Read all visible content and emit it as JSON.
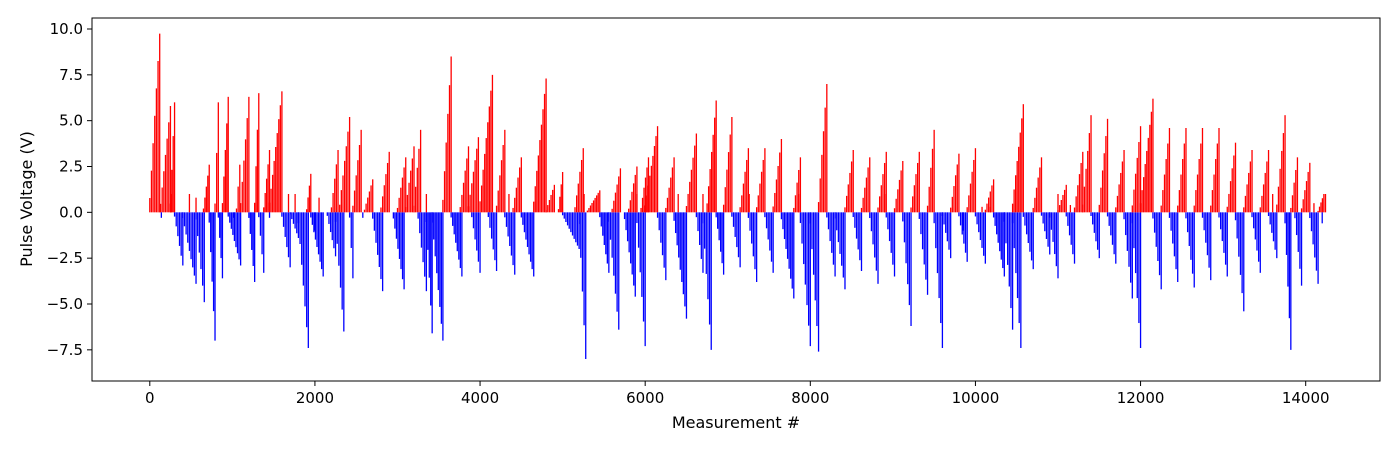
{
  "chart_data": {
    "type": "bar",
    "title": "",
    "xlabel": "Measurement #",
    "ylabel": "Pulse Voltage (V)",
    "xlim": [
      -700,
      14900
    ],
    "ylim": [
      -9.2,
      10.6
    ],
    "xticks": [
      0,
      2000,
      4000,
      6000,
      8000,
      10000,
      12000,
      14000
    ],
    "yticks": [
      -7.5,
      -5.0,
      -2.5,
      0.0,
      2.5,
      5.0,
      7.5,
      10.0
    ],
    "xtick_labels": [
      "0",
      "2000",
      "4000",
      "6000",
      "8000",
      "10000",
      "12000",
      "14000"
    ],
    "ytick_labels": [
      "−7.5",
      "−5.0",
      "−2.5",
      "0.0",
      "2.5",
      "5.0",
      "7.5",
      "10.0"
    ],
    "grid": false,
    "colors": {
      "positive": "#ff0000",
      "negative": "#0000ff"
    },
    "x_step": 20,
    "series_note_unused": null,
    "ramps": [
      {
        "start": 0,
        "end": 120,
        "peak": 9.75
      },
      {
        "start": 130,
        "end": 250,
        "peak": 5.8
      },
      {
        "start": 250,
        "end": 300,
        "peak": 6.0
      },
      {
        "start": 300,
        "end": 400,
        "peak": -2.9
      },
      {
        "start": 400,
        "end": 560,
        "peak": -3.9
      },
      {
        "start": 560,
        "end": 660,
        "peak": -4.9
      },
      {
        "start": 650,
        "end": 720,
        "peak": 2.6
      },
      {
        "start": 720,
        "end": 790,
        "peak": -7.0
      },
      {
        "start": 790,
        "end": 830,
        "peak": 6.0
      },
      {
        "start": 830,
        "end": 880,
        "peak": -3.6
      },
      {
        "start": 880,
        "end": 950,
        "peak": 6.3
      },
      {
        "start": 950,
        "end": 1100,
        "peak": -2.9
      },
      {
        "start": 1050,
        "end": 1090,
        "peak": 2.6
      },
      {
        "start": 1100,
        "end": 1200,
        "peak": 6.3
      },
      {
        "start": 1200,
        "end": 1270,
        "peak": -3.8
      },
      {
        "start": 1270,
        "end": 1320,
        "peak": 6.5
      },
      {
        "start": 1320,
        "end": 1380,
        "peak": -3.3
      },
      {
        "start": 1380,
        "end": 1450,
        "peak": 3.4
      },
      {
        "start": 1450,
        "end": 1600,
        "peak": 6.6
      },
      {
        "start": 1600,
        "end": 1700,
        "peak": -3.0
      },
      {
        "start": 1700,
        "end": 1800,
        "peak": -1.4
      },
      {
        "start": 1800,
        "end": 1920,
        "peak": -7.4
      },
      {
        "start": 1900,
        "end": 1950,
        "peak": 2.1
      },
      {
        "start": 1950,
        "end": 2100,
        "peak": -3.5
      },
      {
        "start": 2150,
        "end": 2250,
        "peak": -2.4
      },
      {
        "start": 2200,
        "end": 2280,
        "peak": 3.4
      },
      {
        "start": 2250,
        "end": 2350,
        "peak": -6.5
      },
      {
        "start": 2300,
        "end": 2420,
        "peak": 5.2
      },
      {
        "start": 2420,
        "end": 2460,
        "peak": -3.6
      },
      {
        "start": 2460,
        "end": 2560,
        "peak": 4.5
      },
      {
        "start": 2600,
        "end": 2700,
        "peak": 1.8
      },
      {
        "start": 2700,
        "end": 2820,
        "peak": -4.3
      },
      {
        "start": 2800,
        "end": 2900,
        "peak": 3.3
      },
      {
        "start": 2950,
        "end": 3080,
        "peak": -4.2
      },
      {
        "start": 3000,
        "end": 3100,
        "peak": 3.0
      },
      {
        "start": 3100,
        "end": 3200,
        "peak": 3.6
      },
      {
        "start": 3200,
        "end": 3280,
        "peak": 4.5
      },
      {
        "start": 3250,
        "end": 3350,
        "peak": -4.3
      },
      {
        "start": 3350,
        "end": 3420,
        "peak": -6.6
      },
      {
        "start": 3420,
        "end": 3550,
        "peak": -7.0
      },
      {
        "start": 3550,
        "end": 3650,
        "peak": 8.5
      },
      {
        "start": 3650,
        "end": 3780,
        "peak": -3.5
      },
      {
        "start": 3760,
        "end": 3860,
        "peak": 3.6
      },
      {
        "start": 3860,
        "end": 3980,
        "peak": 4.1
      },
      {
        "start": 3900,
        "end": 4000,
        "peak": -3.3
      },
      {
        "start": 4000,
        "end": 4150,
        "peak": 7.5
      },
      {
        "start": 4100,
        "end": 4200,
        "peak": -3.2
      },
      {
        "start": 4200,
        "end": 4300,
        "peak": 4.5
      },
      {
        "start": 4300,
        "end": 4420,
        "peak": -3.4
      },
      {
        "start": 4400,
        "end": 4500,
        "peak": 3.0
      },
      {
        "start": 4500,
        "end": 4650,
        "peak": -3.5
      },
      {
        "start": 4650,
        "end": 4800,
        "peak": 7.3
      },
      {
        "start": 4800,
        "end": 4900,
        "peak": 1.5
      },
      {
        "start": 4950,
        "end": 5000,
        "peak": 2.2
      },
      {
        "start": 5000,
        "end": 5200,
        "peak": -2.0
      },
      {
        "start": 5200,
        "end": 5280,
        "peak": -8.0
      },
      {
        "start": 5150,
        "end": 5250,
        "peak": 3.5
      },
      {
        "start": 5300,
        "end": 5450,
        "peak": 1.2
      },
      {
        "start": 5450,
        "end": 5560,
        "peak": -3.3
      },
      {
        "start": 5560,
        "end": 5680,
        "peak": -6.4
      },
      {
        "start": 5600,
        "end": 5700,
        "peak": 2.4
      },
      {
        "start": 5750,
        "end": 5880,
        "peak": -4.6
      },
      {
        "start": 5800,
        "end": 5900,
        "peak": 2.5
      },
      {
        "start": 5900,
        "end": 6000,
        "peak": -7.3
      },
      {
        "start": 5950,
        "end": 6040,
        "peak": 3.0
      },
      {
        "start": 6000,
        "end": 6150,
        "peak": 4.7
      },
      {
        "start": 6150,
        "end": 6250,
        "peak": -3.7
      },
      {
        "start": 6250,
        "end": 6350,
        "peak": 3.0
      },
      {
        "start": 6350,
        "end": 6500,
        "peak": -5.8
      },
      {
        "start": 6500,
        "end": 6620,
        "peak": 4.3
      },
      {
        "start": 6620,
        "end": 6700,
        "peak": -3.3
      },
      {
        "start": 6700,
        "end": 6800,
        "peak": -7.5
      },
      {
        "start": 6750,
        "end": 6860,
        "peak": 6.1
      },
      {
        "start": 6860,
        "end": 6950,
        "peak": -3.4
      },
      {
        "start": 6950,
        "end": 7050,
        "peak": 5.2
      },
      {
        "start": 7050,
        "end": 7150,
        "peak": -3.0
      },
      {
        "start": 7150,
        "end": 7250,
        "peak": 3.5
      },
      {
        "start": 7250,
        "end": 7350,
        "peak": -3.8
      },
      {
        "start": 7350,
        "end": 7450,
        "peak": 3.5
      },
      {
        "start": 7450,
        "end": 7550,
        "peak": -3.3
      },
      {
        "start": 7550,
        "end": 7650,
        "peak": 4.0
      },
      {
        "start": 7650,
        "end": 7800,
        "peak": -4.7
      },
      {
        "start": 7800,
        "end": 7880,
        "peak": 3.0
      },
      {
        "start": 7880,
        "end": 8000,
        "peak": -7.3
      },
      {
        "start": 8000,
        "end": 8100,
        "peak": -7.6
      },
      {
        "start": 8100,
        "end": 8200,
        "peak": 7.0
      },
      {
        "start": 8200,
        "end": 8300,
        "peak": -3.5
      },
      {
        "start": 8300,
        "end": 8420,
        "peak": -4.2
      },
      {
        "start": 8420,
        "end": 8520,
        "peak": 3.4
      },
      {
        "start": 8520,
        "end": 8620,
        "peak": -3.2
      },
      {
        "start": 8620,
        "end": 8720,
        "peak": 3.0
      },
      {
        "start": 8720,
        "end": 8820,
        "peak": -3.9
      },
      {
        "start": 8820,
        "end": 8920,
        "peak": 3.3
      },
      {
        "start": 8920,
        "end": 9020,
        "peak": -3.5
      },
      {
        "start": 9020,
        "end": 9120,
        "peak": 2.8
      },
      {
        "start": 9120,
        "end": 9220,
        "peak": -6.2
      },
      {
        "start": 9220,
        "end": 9320,
        "peak": 3.3
      },
      {
        "start": 9320,
        "end": 9420,
        "peak": -4.5
      },
      {
        "start": 9420,
        "end": 9500,
        "peak": 4.5
      },
      {
        "start": 9500,
        "end": 9600,
        "peak": -7.4
      },
      {
        "start": 9600,
        "end": 9700,
        "peak": -2.5
      },
      {
        "start": 9700,
        "end": 9800,
        "peak": 3.2
      },
      {
        "start": 9800,
        "end": 9900,
        "peak": -2.7
      },
      {
        "start": 9900,
        "end": 10000,
        "peak": 3.5
      },
      {
        "start": 10000,
        "end": 10120,
        "peak": -2.8
      },
      {
        "start": 10120,
        "end": 10220,
        "peak": 1.8
      },
      {
        "start": 10220,
        "end": 10350,
        "peak": -3.5
      },
      {
        "start": 10350,
        "end": 10450,
        "peak": -6.4
      },
      {
        "start": 10450,
        "end": 10550,
        "peak": -7.4
      },
      {
        "start": 10450,
        "end": 10580,
        "peak": 5.9
      },
      {
        "start": 10580,
        "end": 10700,
        "peak": -3.1
      },
      {
        "start": 10700,
        "end": 10800,
        "peak": 3.0
      },
      {
        "start": 10800,
        "end": 10900,
        "peak": -2.3
      },
      {
        "start": 10900,
        "end": 11000,
        "peak": -3.6
      },
      {
        "start": 11000,
        "end": 11100,
        "peak": 1.5
      },
      {
        "start": 11100,
        "end": 11200,
        "peak": -2.8
      },
      {
        "start": 11200,
        "end": 11300,
        "peak": 3.3
      },
      {
        "start": 11300,
        "end": 11400,
        "peak": 5.3
      },
      {
        "start": 11400,
        "end": 11500,
        "peak": -2.5
      },
      {
        "start": 11500,
        "end": 11600,
        "peak": 5.1
      },
      {
        "start": 11600,
        "end": 11700,
        "peak": -2.8
      },
      {
        "start": 11700,
        "end": 11800,
        "peak": 3.4
      },
      {
        "start": 11800,
        "end": 11900,
        "peak": -4.7
      },
      {
        "start": 11900,
        "end": 12000,
        "peak": -7.4
      },
      {
        "start": 11900,
        "end": 12000,
        "peak": 4.7
      },
      {
        "start": 12000,
        "end": 12150,
        "peak": 6.2
      },
      {
        "start": 12150,
        "end": 12250,
        "peak": -4.2
      },
      {
        "start": 12250,
        "end": 12350,
        "peak": 4.6
      },
      {
        "start": 12350,
        "end": 12450,
        "peak": -3.8
      },
      {
        "start": 12450,
        "end": 12550,
        "peak": 4.6
      },
      {
        "start": 12550,
        "end": 12650,
        "peak": -4.1
      },
      {
        "start": 12650,
        "end": 12750,
        "peak": 4.6
      },
      {
        "start": 12750,
        "end": 12850,
        "peak": -3.7
      },
      {
        "start": 12850,
        "end": 12950,
        "peak": 4.6
      },
      {
        "start": 12950,
        "end": 13050,
        "peak": -3.5
      },
      {
        "start": 13050,
        "end": 13150,
        "peak": 3.8
      },
      {
        "start": 13150,
        "end": 13250,
        "peak": -5.4
      },
      {
        "start": 13250,
        "end": 13350,
        "peak": 3.4
      },
      {
        "start": 13350,
        "end": 13450,
        "peak": -3.3
      },
      {
        "start": 13450,
        "end": 13550,
        "peak": 3.4
      },
      {
        "start": 13550,
        "end": 13650,
        "peak": -2.5
      },
      {
        "start": 13650,
        "end": 13750,
        "peak": 5.3
      },
      {
        "start": 13750,
        "end": 13820,
        "peak": -7.5
      },
      {
        "start": 13820,
        "end": 13900,
        "peak": 3.0
      },
      {
        "start": 13870,
        "end": 13950,
        "peak": -4.0
      },
      {
        "start": 13950,
        "end": 14050,
        "peak": 2.7
      },
      {
        "start": 14050,
        "end": 14150,
        "peak": -3.9
      },
      {
        "start": 14150,
        "end": 14220,
        "peak": 1.0
      }
    ],
    "spikes": [
      {
        "x": 140,
        "value": -0.3
      },
      {
        "x": 260,
        "value": 1.0
      },
      {
        "x": 480,
        "value": 1.0
      },
      {
        "x": 560,
        "value": 0.8
      },
      {
        "x": 1020,
        "value": -0.3
      },
      {
        "x": 1450,
        "value": -0.3
      },
      {
        "x": 1680,
        "value": 1.0
      },
      {
        "x": 1760,
        "value": 1.0
      },
      {
        "x": 2000,
        "value": -1.0
      },
      {
        "x": 2050,
        "value": 0.8
      },
      {
        "x": 2580,
        "value": -0.3
      },
      {
        "x": 3350,
        "value": 1.0
      },
      {
        "x": 4350,
        "value": 1.0
      },
      {
        "x": 5260,
        "value": 1.0
      },
      {
        "x": 5900,
        "value": 1.0
      },
      {
        "x": 6400,
        "value": 1.0
      },
      {
        "x": 6700,
        "value": 1.0
      },
      {
        "x": 7260,
        "value": 1.0
      },
      {
        "x": 7860,
        "value": 1.0
      },
      {
        "x": 8900,
        "value": 1.0
      },
      {
        "x": 9850,
        "value": -1.0
      },
      {
        "x": 10080,
        "value": 0.3
      },
      {
        "x": 10180,
        "value": 0.3
      },
      {
        "x": 11000,
        "value": 1.0
      },
      {
        "x": 11150,
        "value": 0.4
      },
      {
        "x": 13600,
        "value": 1.0
      },
      {
        "x": 14100,
        "value": 0.5
      },
      {
        "x": 14200,
        "value": -0.6
      },
      {
        "x": 14240,
        "value": 1.0
      }
    ]
  }
}
